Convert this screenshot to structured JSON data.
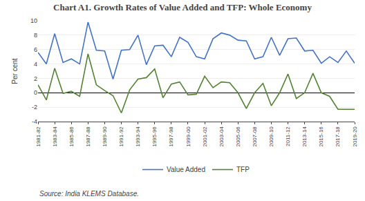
{
  "chart_data": {
    "type": "line",
    "title": "Chart A1. Growth Rates of Value Added and TFP: Whole Economy",
    "ylabel": "Per cent",
    "annotations": [
      "Source: India KLEMS Database."
    ],
    "categories": [
      "1981-82",
      null,
      "1983-84",
      null,
      "1985-86",
      null,
      "1987-88",
      null,
      "1989-90",
      null,
      "1991-92",
      null,
      "1993-94",
      null,
      "1995-96",
      null,
      "1997-98",
      null,
      "1999-00",
      null,
      "2001-02",
      null,
      "2003-04",
      null,
      "2005-06",
      null,
      "2007-08",
      null,
      "2009-10",
      null,
      "2011-12",
      null,
      "2013-14",
      null,
      "2015-16",
      null,
      "2017-18",
      null,
      "2019-20"
    ],
    "series": [
      {
        "name": "Value Added",
        "color": "#4472C4",
        "values": [
          5.6,
          4.0,
          8.2,
          4.2,
          4.7,
          4.0,
          9.8,
          5.9,
          5.8,
          1.9,
          5.9,
          6.0,
          8.0,
          3.9,
          6.5,
          6.6,
          5.0,
          7.7,
          7.0,
          5.0,
          4.7,
          7.5,
          8.3,
          8.0,
          7.3,
          7.2,
          4.7,
          5.0,
          7.7,
          5.2,
          7.5,
          7.6,
          5.8,
          5.9,
          4.1,
          5.0,
          4.2,
          5.8,
          4.1
        ]
      },
      {
        "name": "TFP",
        "color": "#548235",
        "values": [
          1.1,
          -1.0,
          3.4,
          -0.1,
          0.2,
          -0.5,
          5.4,
          1.1,
          0.3,
          -0.4,
          -2.8,
          0.4,
          1.9,
          2.1,
          3.3,
          -0.7,
          1.2,
          1.5,
          -0.3,
          -0.2,
          2.3,
          0.7,
          1.5,
          1.4,
          0.0,
          -2.2,
          0.0,
          1.3,
          -1.8,
          0.0,
          2.6,
          -0.8,
          0.0,
          2.7,
          0.0,
          -0.5,
          -2.3,
          -2.3,
          -2.3
        ]
      }
    ],
    "ylim": [
      -4,
      10
    ],
    "yticks": [
      -4,
      -2,
      0,
      2,
      4,
      6,
      8,
      10
    ],
    "grid": true,
    "legend": "bottom"
  }
}
